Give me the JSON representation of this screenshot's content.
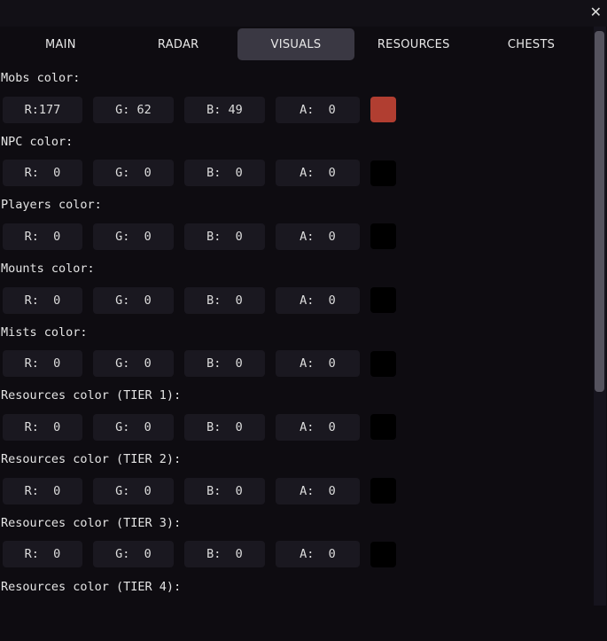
{
  "window": {
    "close_icon": "x"
  },
  "tabs": [
    {
      "label": "MAIN"
    },
    {
      "label": "RADAR"
    },
    {
      "label": "VISUALS",
      "active": true
    },
    {
      "label": "RESOURCES"
    },
    {
      "label": "CHESTS"
    }
  ],
  "sections": [
    {
      "label": "Mobs color:",
      "r": "R:177",
      "g": "G: 62",
      "b": "B: 49",
      "a": "A:  0",
      "swatch": "#b13e31"
    },
    {
      "label": "NPC color:",
      "r": "R:  0",
      "g": "G:  0",
      "b": "B:  0",
      "a": "A:  0",
      "swatch": "#000000"
    },
    {
      "label": "Players color:",
      "r": "R:  0",
      "g": "G:  0",
      "b": "B:  0",
      "a": "A:  0",
      "swatch": "#000000"
    },
    {
      "label": "Mounts color:",
      "r": "R:  0",
      "g": "G:  0",
      "b": "B:  0",
      "a": "A:  0",
      "swatch": "#000000"
    },
    {
      "label": "Mists color:",
      "r": "R:  0",
      "g": "G:  0",
      "b": "B:  0",
      "a": "A:  0",
      "swatch": "#000000"
    },
    {
      "label": "Resources color (TIER 1):",
      "r": "R:  0",
      "g": "G:  0",
      "b": "B:  0",
      "a": "A:  0",
      "swatch": "#000000"
    },
    {
      "label": "Resources color (TIER 2):",
      "r": "R:  0",
      "g": "G:  0",
      "b": "B:  0",
      "a": "A:  0",
      "swatch": "#000000"
    },
    {
      "label": "Resources color (TIER 3):",
      "r": "R:  0",
      "g": "G:  0",
      "b": "B:  0",
      "a": "A:  0",
      "swatch": "#000000"
    },
    {
      "label": "Resources color (TIER 4):"
    }
  ],
  "scrollbar": {
    "position_fraction": 0.0
  }
}
